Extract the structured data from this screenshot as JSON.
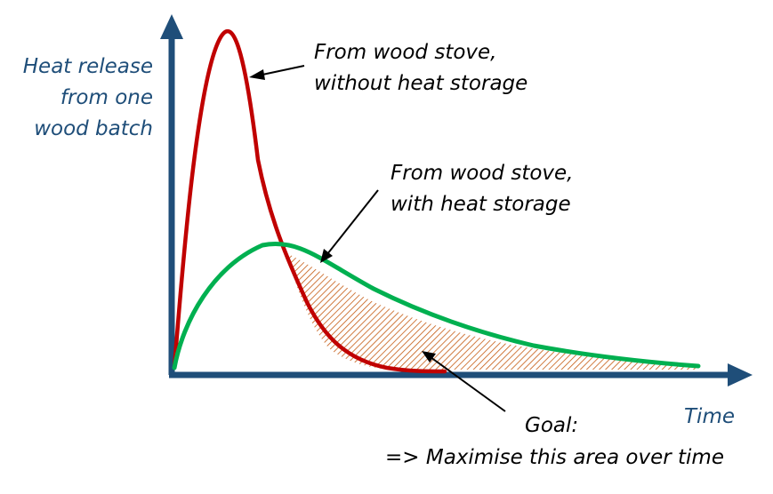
{
  "diagram": {
    "y_axis_label": [
      "Heat release",
      "from one",
      "wood batch"
    ],
    "x_axis_label": "Time",
    "annotations": {
      "without_storage": [
        "From wood stove,",
        "without heat storage"
      ],
      "with_storage": [
        "From wood stove,",
        "with heat storage"
      ],
      "goal": [
        "Goal:",
        "=> Maximise this area over time"
      ]
    },
    "colors": {
      "axis": "#1f4e79",
      "without_storage_curve": "#c00000",
      "with_storage_curve": "#00b050",
      "area_hatch": "#c55a11",
      "annotation_text": "#000000"
    }
  }
}
